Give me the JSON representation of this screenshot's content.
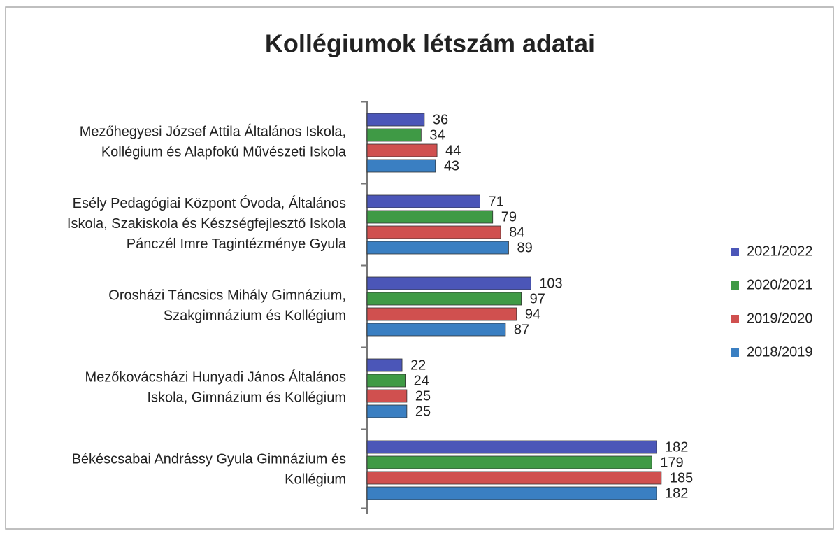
{
  "chart_data": {
    "type": "bar",
    "orientation": "horizontal",
    "title": "Kollégiumok létszám adatai",
    "categories": [
      "Mezőhegyesi József Attila Általános Iskola,\nKollégium és Alapfokú Művészeti Iskola",
      "Esély Pedagógiai Központ Óvoda, Általános\nIskola, Szakiskola és Készségfejlesztő Iskola\nPánczél Imre Tagintézménye Gyula",
      "Orosházi Táncsics Mihály Gimnázium,\nSzakgimnázium és Kollégium",
      "Mezőkovácsházi Hunyadi János Általános\nIskola, Gimnázium és Kollégium",
      "Békéscsabai Andrássy Gyula Gimnázium és\nKollégium"
    ],
    "series": [
      {
        "name": "2021/2022",
        "color": "#4b56b8",
        "values": [
          36,
          71,
          103,
          22,
          182
        ]
      },
      {
        "name": "2020/2021",
        "color": "#3f9a45",
        "values": [
          34,
          79,
          97,
          24,
          179
        ]
      },
      {
        "name": "2019/2020",
        "color": "#d0504f",
        "values": [
          44,
          84,
          94,
          25,
          185
        ]
      },
      {
        "name": "2018/2019",
        "color": "#3a7fc2",
        "values": [
          43,
          89,
          87,
          25,
          182
        ]
      }
    ],
    "xlim": [
      0,
      200
    ],
    "legend": "right"
  }
}
